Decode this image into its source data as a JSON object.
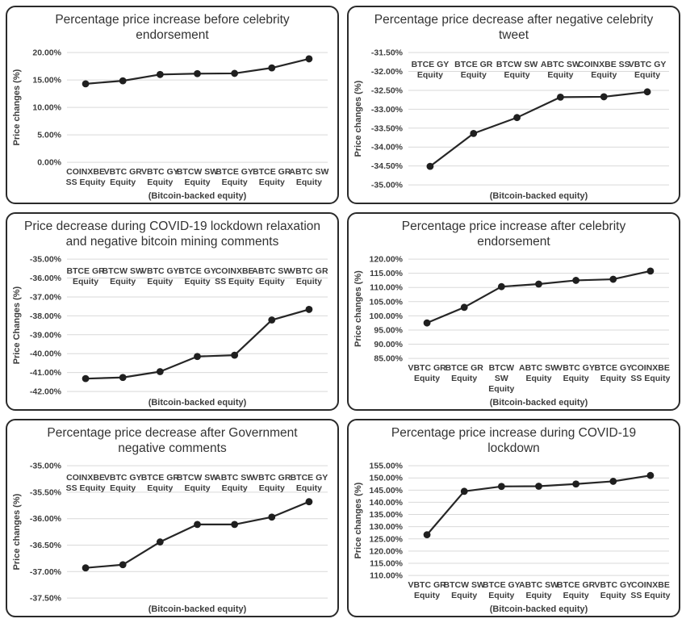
{
  "style": {
    "text_color": "#3d3d3d",
    "title_color": "#333333",
    "grid_color": "#d9d9d9",
    "line_color": "#262626",
    "marker_color": "#1f1f1f",
    "panel_border_color": "#2a2a2a",
    "background": "#ffffff"
  },
  "chart_data": [
    {
      "type": "line",
      "title": "Percentage price increase before celebrity endorsement",
      "xlabel": "(Bitcoin-backed equity)",
      "ylabel": "Price changes (%)",
      "categories": [
        "COINXBE SS Equity",
        "VBTC GR Equity",
        "VBTC GY Equity",
        "BTCW SW Equity",
        "BTCE GY Equity",
        "BTCE GR Equity",
        "ABTC SW Equity"
      ],
      "category_lines": [
        [
          "COINXBE",
          "SS Equity"
        ],
        [
          "VBTC GR",
          "Equity"
        ],
        [
          "VBTC GY",
          "Equity"
        ],
        [
          "BTCW SW",
          "Equity"
        ],
        [
          "BTCE GY",
          "Equity"
        ],
        [
          "BTCE GR",
          "Equity"
        ],
        [
          "ABTC SW",
          "Equity"
        ]
      ],
      "values": [
        14.3,
        14.85,
        16.0,
        16.15,
        16.2,
        17.2,
        18.85
      ],
      "ylim": [
        0,
        20
      ],
      "ytick_step": 5,
      "category_labels_position": "bottom",
      "grid": true,
      "legend": false
    },
    {
      "type": "line",
      "title": "Percentage price decrease after negative celebrity tweet",
      "xlabel": "(Bitcoin-backed equity)",
      "ylabel": "Price changes (%)",
      "categories": [
        "BTCE GY Equity",
        "BTCE GR Equity",
        "BTCW SW Equity",
        "ABTC SW Equity",
        "COINXBE SS Equity",
        "VBTC GY Equity"
      ],
      "category_lines": [
        [
          "BTCE GY",
          "Equity"
        ],
        [
          "BTCE GR",
          "Equity"
        ],
        [
          "BTCW SW",
          "Equity"
        ],
        [
          "ABTC SW",
          "Equity"
        ],
        [
          "COINXBE SS",
          "Equity"
        ],
        [
          "VBTC GY",
          "Equity"
        ]
      ],
      "values": [
        -34.51,
        -33.64,
        -33.22,
        -32.68,
        -32.67,
        -32.54
      ],
      "ylim": [
        -35.0,
        -31.5
      ],
      "ytick_step": 0.5,
      "category_labels_position": "top",
      "grid": true,
      "legend": false
    },
    {
      "type": "line",
      "title": "Price decrease during COVID-19 lockdown relaxation and negative bitcoin mining comments",
      "xlabel": "(Bitcoin-backed equity)",
      "ylabel": "Price Changes (%)",
      "categories": [
        "BTCE GR Equity",
        "BTCW SW Equity",
        "VBTC GY Equity",
        "BTCE GY Equity",
        "COINXBE SS Equity",
        "ABTC SW Equity",
        "VBTC GR Equity"
      ],
      "category_lines": [
        [
          "BTCE GR",
          "Equity"
        ],
        [
          "BTCW SW",
          "Equity"
        ],
        [
          "VBTC GY",
          "Equity"
        ],
        [
          "BTCE GY",
          "Equity"
        ],
        [
          "COINXBE",
          "SS Equity"
        ],
        [
          "ABTC SW",
          "Equity"
        ],
        [
          "VBTC GR",
          "Equity"
        ]
      ],
      "values": [
        -41.32,
        -41.26,
        -40.95,
        -40.15,
        -40.08,
        -38.22,
        -37.66
      ],
      "ylim": [
        -42.0,
        -35.0
      ],
      "ytick_step": 1.0,
      "category_labels_position": "top",
      "grid": true,
      "legend": false
    },
    {
      "type": "line",
      "title": "Percentage price increase after celebrity endorsement",
      "xlabel": "(Bitcoin-backed equity)",
      "ylabel": "Price changes (%)",
      "categories": [
        "VBTC GR Equity",
        "BTCE GR Equity",
        "BTCW SW Equity",
        "ABTC SW Equity",
        "VBTC GY Equity",
        "BTCE GY Equity",
        "COINXBE SS Equity"
      ],
      "category_lines": [
        [
          "VBTC GR",
          "Equity"
        ],
        [
          "BTCE GR",
          "Equity"
        ],
        [
          "BTCW",
          "SW",
          "Equity"
        ],
        [
          "ABTC SW",
          "Equity"
        ],
        [
          "VBTC GY",
          "Equity"
        ],
        [
          "BTCE GY",
          "Equity"
        ],
        [
          "COINXBE",
          "SS Equity"
        ]
      ],
      "values": [
        97.5,
        103.0,
        110.3,
        111.2,
        112.5,
        112.9,
        115.8
      ],
      "ylim": [
        85,
        120
      ],
      "ytick_step": 5,
      "category_labels_position": "bottom",
      "grid": true,
      "legend": false
    },
    {
      "type": "line",
      "title": "Percentage price decrease after Government negative comments",
      "xlabel": "(Bitcoin-backed equity)",
      "ylabel": "Price changes (%)",
      "categories": [
        "COINXBE SS Equity",
        "VBTC GY Equity",
        "BTCE GR Equity",
        "BTCW SW Equity",
        "ABTC SW Equity",
        "VBTC GR Equity",
        "BTCE GY Equity"
      ],
      "category_lines": [
        [
          "COINXBE",
          "SS Equity"
        ],
        [
          "VBTC GY",
          "Equity"
        ],
        [
          "BTCE GR",
          "Equity"
        ],
        [
          "BTCW SW",
          "Equity"
        ],
        [
          "ABTC SW",
          "Equity"
        ],
        [
          "VBTC GR",
          "Equity"
        ],
        [
          "BTCE GY",
          "Equity"
        ]
      ],
      "values": [
        -36.93,
        -36.87,
        -36.44,
        -36.11,
        -36.11,
        -35.97,
        -35.68
      ],
      "ylim": [
        -37.5,
        -35.0
      ],
      "ytick_step": 0.5,
      "category_labels_position": "top",
      "grid": true,
      "legend": false
    },
    {
      "type": "line",
      "title": "Percentage price increase during COVID-19 lockdown",
      "xlabel": "(Bitcoin-backed equity)",
      "ylabel": "Price changes (%)",
      "categories": [
        "VBTC GR Equity",
        "BTCW SW Equity",
        "BTCE GY Equity",
        "ABTC SW Equity",
        "BTCE GR Equity",
        "VBTC GY Equity",
        "COINXBE SS Equity"
      ],
      "category_lines": [
        [
          "VBTC GR",
          "Equity"
        ],
        [
          "BTCW SW",
          "Equity"
        ],
        [
          "BTCE GY",
          "Equity"
        ],
        [
          "ABTC SW",
          "Equity"
        ],
        [
          "BTCE GR",
          "Equity"
        ],
        [
          "VBTC GY",
          "Equity"
        ],
        [
          "COINXBE",
          "SS Equity"
        ]
      ],
      "values": [
        126.7,
        144.5,
        146.5,
        146.6,
        147.5,
        148.6,
        151.0
      ],
      "ylim": [
        110,
        155
      ],
      "ytick_step": 5,
      "category_labels_position": "bottom",
      "grid": true,
      "legend": false
    }
  ]
}
